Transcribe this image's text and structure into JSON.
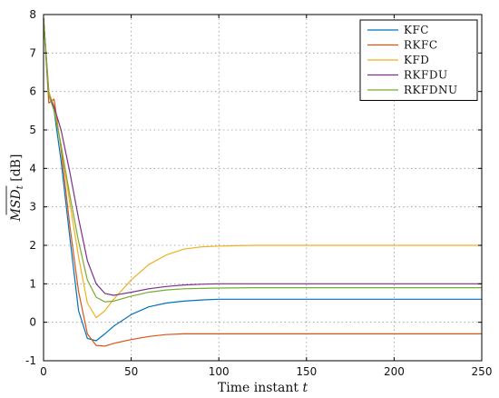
{
  "chart_data": {
    "type": "line",
    "title": "",
    "xlabel_text": "Time instant ",
    "xlabel_var": "t",
    "ylabel_text": "MSD",
    "ylabel_sub": "t",
    "ylabel_unit": " [dB]",
    "xlim": [
      0,
      250
    ],
    "ylim": [
      -1,
      8
    ],
    "grid": true,
    "legend_position": "top-right",
    "x": [
      0,
      3,
      6,
      10,
      15,
      20,
      25,
      30,
      35,
      40,
      50,
      60,
      70,
      80,
      90,
      100,
      120,
      150,
      200,
      250
    ],
    "x_ticks": [
      "0",
      "50",
      "100",
      "150",
      "200",
      "250"
    ],
    "y_ticks": [
      "-1",
      "0",
      "1",
      "2",
      "3",
      "4",
      "5",
      "6",
      "7",
      "8"
    ],
    "series": [
      {
        "name": "KFC",
        "color": "#0072BD",
        "values": [
          7.9,
          6.0,
          5.5,
          4.2,
          2.2,
          0.3,
          -0.42,
          -0.48,
          -0.3,
          -0.1,
          0.2,
          0.4,
          0.5,
          0.55,
          0.58,
          0.6,
          0.6,
          0.6,
          0.6,
          0.6
        ]
      },
      {
        "name": "RKFC",
        "color": "#D95319",
        "values": [
          7.9,
          5.7,
          5.8,
          4.5,
          2.5,
          0.8,
          -0.3,
          -0.6,
          -0.62,
          -0.55,
          -0.45,
          -0.37,
          -0.32,
          -0.3,
          -0.3,
          -0.3,
          -0.3,
          -0.3,
          -0.3,
          -0.3
        ]
      },
      {
        "name": "KFD",
        "color": "#EDB120",
        "values": [
          7.9,
          6.0,
          5.6,
          4.6,
          3.1,
          1.7,
          0.5,
          0.12,
          0.3,
          0.6,
          1.1,
          1.5,
          1.75,
          1.9,
          1.96,
          1.98,
          2.0,
          2.0,
          2.0,
          2.0
        ]
      },
      {
        "name": "RKFDU",
        "color": "#7E2F8E",
        "values": [
          7.9,
          5.9,
          5.6,
          5.0,
          3.9,
          2.7,
          1.6,
          1.0,
          0.75,
          0.7,
          0.78,
          0.87,
          0.93,
          0.97,
          0.99,
          1.0,
          1.0,
          1.0,
          1.0,
          1.0
        ]
      },
      {
        "name": "RKFDNU",
        "color": "#77AC30",
        "values": [
          7.9,
          5.9,
          5.5,
          4.6,
          3.3,
          2.1,
          1.1,
          0.65,
          0.53,
          0.55,
          0.68,
          0.78,
          0.84,
          0.87,
          0.88,
          0.89,
          0.9,
          0.9,
          0.9,
          0.9
        ]
      }
    ]
  }
}
